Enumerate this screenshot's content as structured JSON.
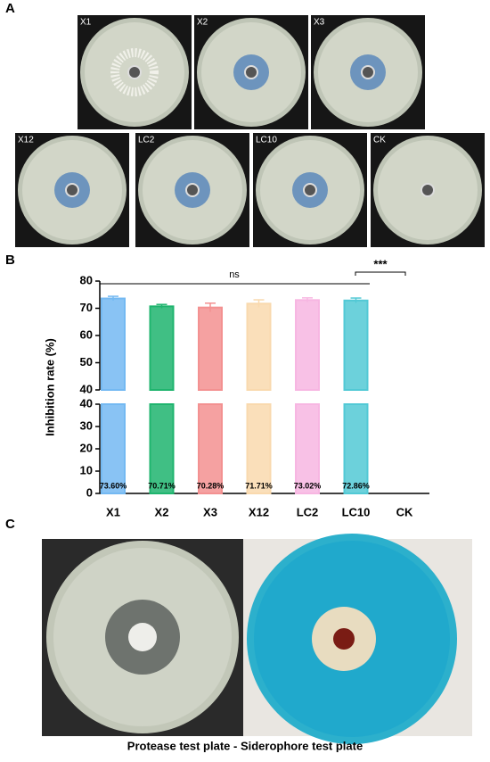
{
  "panel_labels": [
    "A",
    "B",
    "C"
  ],
  "plates": [
    "X1",
    "X2",
    "X3",
    "X12",
    "LC2",
    "LC10",
    "CK"
  ],
  "caption": "Protease test plate - Siderophore test plate",
  "chart_data": {
    "type": "bar",
    "ylabel": "Inhibition rate (%)",
    "categories": [
      "X1",
      "X2",
      "X3",
      "X12",
      "LC2",
      "LC10",
      "CK"
    ],
    "values": [
      73.6,
      70.71,
      70.28,
      71.71,
      73.02,
      72.86,
      0
    ],
    "value_labels": [
      "73.60%",
      "70.71%",
      "70.28%",
      "71.71%",
      "73.02%",
      "72.86%",
      null
    ],
    "errors": [
      0.8,
      0.7,
      1.6,
      1.4,
      0.8,
      0.9,
      null
    ],
    "colors": [
      "#74b9f2",
      "#1fb46e",
      "#f39191",
      "#f9d9ae",
      "#f7b6e2",
      "#52c9d5",
      "#cccccc"
    ],
    "ylim": [
      0,
      80
    ],
    "segments": [
      {
        "ylim": [
          0,
          40
        ],
        "yticks": [
          0,
          10,
          20,
          30,
          40
        ]
      },
      {
        "ylim": [
          40,
          80
        ],
        "yticks": [
          40,
          50,
          60,
          70,
          80
        ]
      }
    ],
    "annotations": [
      "ns",
      "***"
    ]
  }
}
